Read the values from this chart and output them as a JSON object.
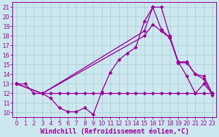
{
  "bg_color": "#cce8ee",
  "grid_color": "#b0d0d8",
  "line_color": "#990099",
  "xlabel": "Windchill (Refroidissement éolien,°C)",
  "xlim": [
    -0.5,
    23.5
  ],
  "ylim": [
    9.5,
    21.5
  ],
  "xticks": [
    0,
    1,
    2,
    3,
    4,
    5,
    6,
    7,
    8,
    9,
    10,
    11,
    12,
    13,
    14,
    15,
    16,
    17,
    18,
    19,
    20,
    21,
    22,
    23
  ],
  "yticks": [
    10,
    11,
    12,
    13,
    14,
    15,
    16,
    17,
    18,
    19,
    20,
    21
  ],
  "line1_x": [
    0,
    1,
    2,
    3,
    4,
    5,
    6,
    7,
    8,
    9,
    10,
    11,
    12,
    13,
    14,
    15,
    16,
    17,
    18,
    19,
    20,
    21,
    22,
    23
  ],
  "line1_y": [
    13,
    13,
    12,
    12,
    12,
    12,
    12,
    12,
    12,
    12,
    12,
    12,
    12,
    12,
    12,
    12,
    12,
    12,
    12,
    12,
    12,
    12,
    12,
    12
  ],
  "line2_x": [
    0,
    3,
    4,
    5,
    6,
    7,
    8,
    9,
    10,
    11,
    12,
    13,
    14,
    15,
    16,
    17,
    18,
    19,
    20,
    21,
    22,
    23
  ],
  "line2_y": [
    13,
    12,
    11.5,
    10.5,
    10.1,
    10.1,
    10.5,
    9.8,
    12.2,
    14.2,
    15.5,
    16.2,
    16.8,
    19.5,
    21.0,
    21.0,
    18.0,
    15.3,
    13.8,
    12.0,
    13.0,
    12.0
  ],
  "line3_x": [
    0,
    3,
    15,
    16,
    17,
    18,
    19,
    20,
    21,
    22,
    23
  ],
  "line3_y": [
    13,
    12,
    18.5,
    21.0,
    18.7,
    17.8,
    15.3,
    15.3,
    14.0,
    13.8,
    12.0
  ],
  "line4_x": [
    0,
    3,
    15,
    16,
    17,
    18,
    19,
    20,
    21,
    22,
    23
  ],
  "line4_y": [
    13,
    12,
    18.0,
    19.2,
    18.5,
    17.8,
    15.2,
    15.2,
    14.0,
    13.5,
    11.8
  ],
  "marker": "D",
  "markersize": 2.5,
  "linewidth": 1.0,
  "tick_fontsize": 6,
  "xlabel_fontsize": 7,
  "tick_color": "#990099",
  "xlabel_color": "#990099",
  "axis_color": "#990099"
}
